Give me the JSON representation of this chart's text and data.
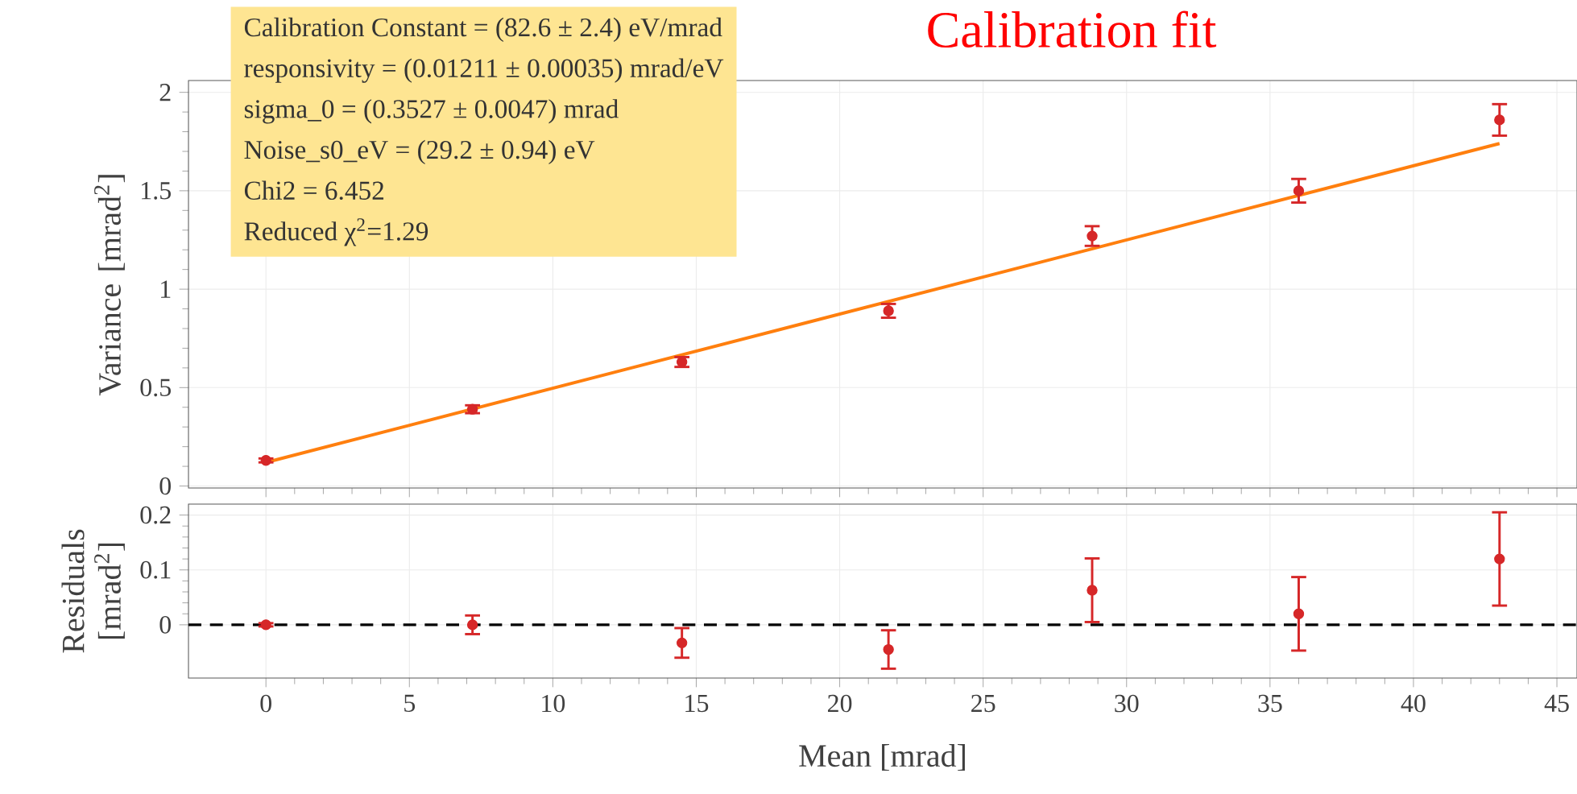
{
  "chart_data": [
    {
      "type": "scatter",
      "title": "Calibration fit",
      "ylabel": "Variance [mrad$^{2}$]",
      "annotations": [
        "Calibration Constant = (82.6 ± 2.4) eV/mrad",
        "responsivity = (0.01211 ± 0.00035) mrad/eV",
        "sigma_0 = (0.3527 ± 0.0047) mrad",
        "Noise_s0_eV = (29.2 ± 0.94) eV",
        "Chi2 = 6.452",
        "Reduced χ$^{2}$=1.29"
      ],
      "x": [
        0,
        7.2,
        14.5,
        21.7,
        28.8,
        36,
        43
      ],
      "series": [
        {
          "color": "#d62728",
          "values": [
            0.13,
            0.39,
            0.63,
            0.89,
            1.27,
            1.5,
            1.86
          ],
          "errors": [
            0.01,
            0.02,
            0.025,
            0.035,
            0.05,
            0.06,
            0.08
          ]
        },
        {
          "type": "line",
          "color": "#ff7f0e",
          "line_style": "solid",
          "x": [
            0,
            43
          ],
          "values": [
            0.12,
            1.74
          ]
        }
      ],
      "xlim": [
        -2.7,
        45.7
      ],
      "xticks": [
        0,
        5,
        10,
        15,
        20,
        25,
        30,
        35,
        40,
        45
      ],
      "ylim": [
        -0.01,
        2.06
      ],
      "yticks": [
        0,
        0.5,
        1,
        1.5,
        2
      ],
      "grid": true,
      "marker": "circle",
      "tick_labels": "y"
    },
    {
      "type": "scatter",
      "xlabel": "Mean [mrad]",
      "ylabel": "Residuals [mrad$^{2}$]",
      "x": [
        0,
        7.2,
        14.5,
        21.7,
        28.8,
        36,
        43
      ],
      "series": [
        {
          "color": "#d62728",
          "values": [
            0,
            0,
            -0.033,
            -0.045,
            0.063,
            0.02,
            0.12
          ],
          "errors": [
            0.003,
            0.017,
            0.027,
            0.035,
            0.058,
            0.067,
            0.085
          ]
        }
      ],
      "ref_lines": [
        {
          "axis": "y",
          "value": 0,
          "color": "#000000",
          "line_style": "dashed"
        }
      ],
      "xlim": [
        -2.7,
        45.7
      ],
      "xticks": [
        0,
        5,
        10,
        15,
        20,
        25,
        30,
        35,
        40,
        45
      ],
      "ylim": [
        -0.097,
        0.22
      ],
      "yticks": [
        0,
        0.1,
        0.2
      ],
      "grid": true,
      "marker": "circle"
    }
  ]
}
